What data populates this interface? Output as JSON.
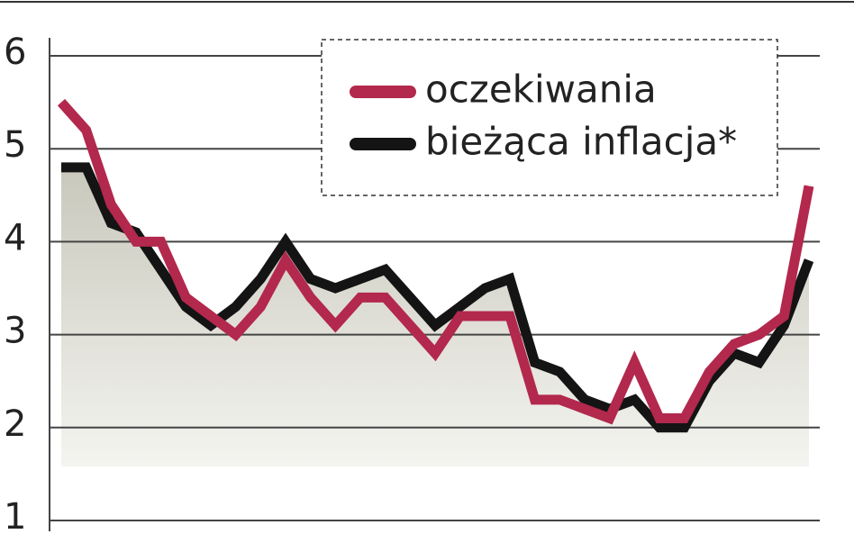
{
  "chart_data": {
    "type": "line",
    "categories": [
      null,
      null,
      null,
      null,
      null,
      null,
      null,
      null,
      null,
      null,
      null,
      null,
      null,
      null,
      null,
      null,
      null,
      null,
      null,
      null,
      null,
      null,
      null,
      null,
      null,
      null,
      null,
      null,
      null,
      null,
      null
    ],
    "series": [
      {
        "name": "oczekiwania",
        "color": "#b3284d",
        "values": [
          5.5,
          5.2,
          4.4,
          4.0,
          4.0,
          3.4,
          3.2,
          3.0,
          3.3,
          3.8,
          3.4,
          3.1,
          3.4,
          3.4,
          3.1,
          2.8,
          3.2,
          3.2,
          3.2,
          2.3,
          2.3,
          2.2,
          2.1,
          2.7,
          2.1,
          2.1,
          2.6,
          2.9,
          3.0,
          3.2,
          4.6
        ]
      },
      {
        "name": "bieżąca inflacja*",
        "color": "#141414",
        "values": [
          4.8,
          4.8,
          4.2,
          4.1,
          3.7,
          3.3,
          3.1,
          3.3,
          3.6,
          4.0,
          3.6,
          3.5,
          3.6,
          3.7,
          3.4,
          3.1,
          3.3,
          3.5,
          3.6,
          2.7,
          2.6,
          2.3,
          2.2,
          2.3,
          2.0,
          2.0,
          2.5,
          2.8,
          2.7,
          3.1,
          3.8
        ]
      }
    ],
    "ylim": [
      1,
      6
    ],
    "yticks": [
      1,
      2,
      3,
      4,
      5,
      6
    ],
    "grid": true,
    "legend": "upper right"
  }
}
